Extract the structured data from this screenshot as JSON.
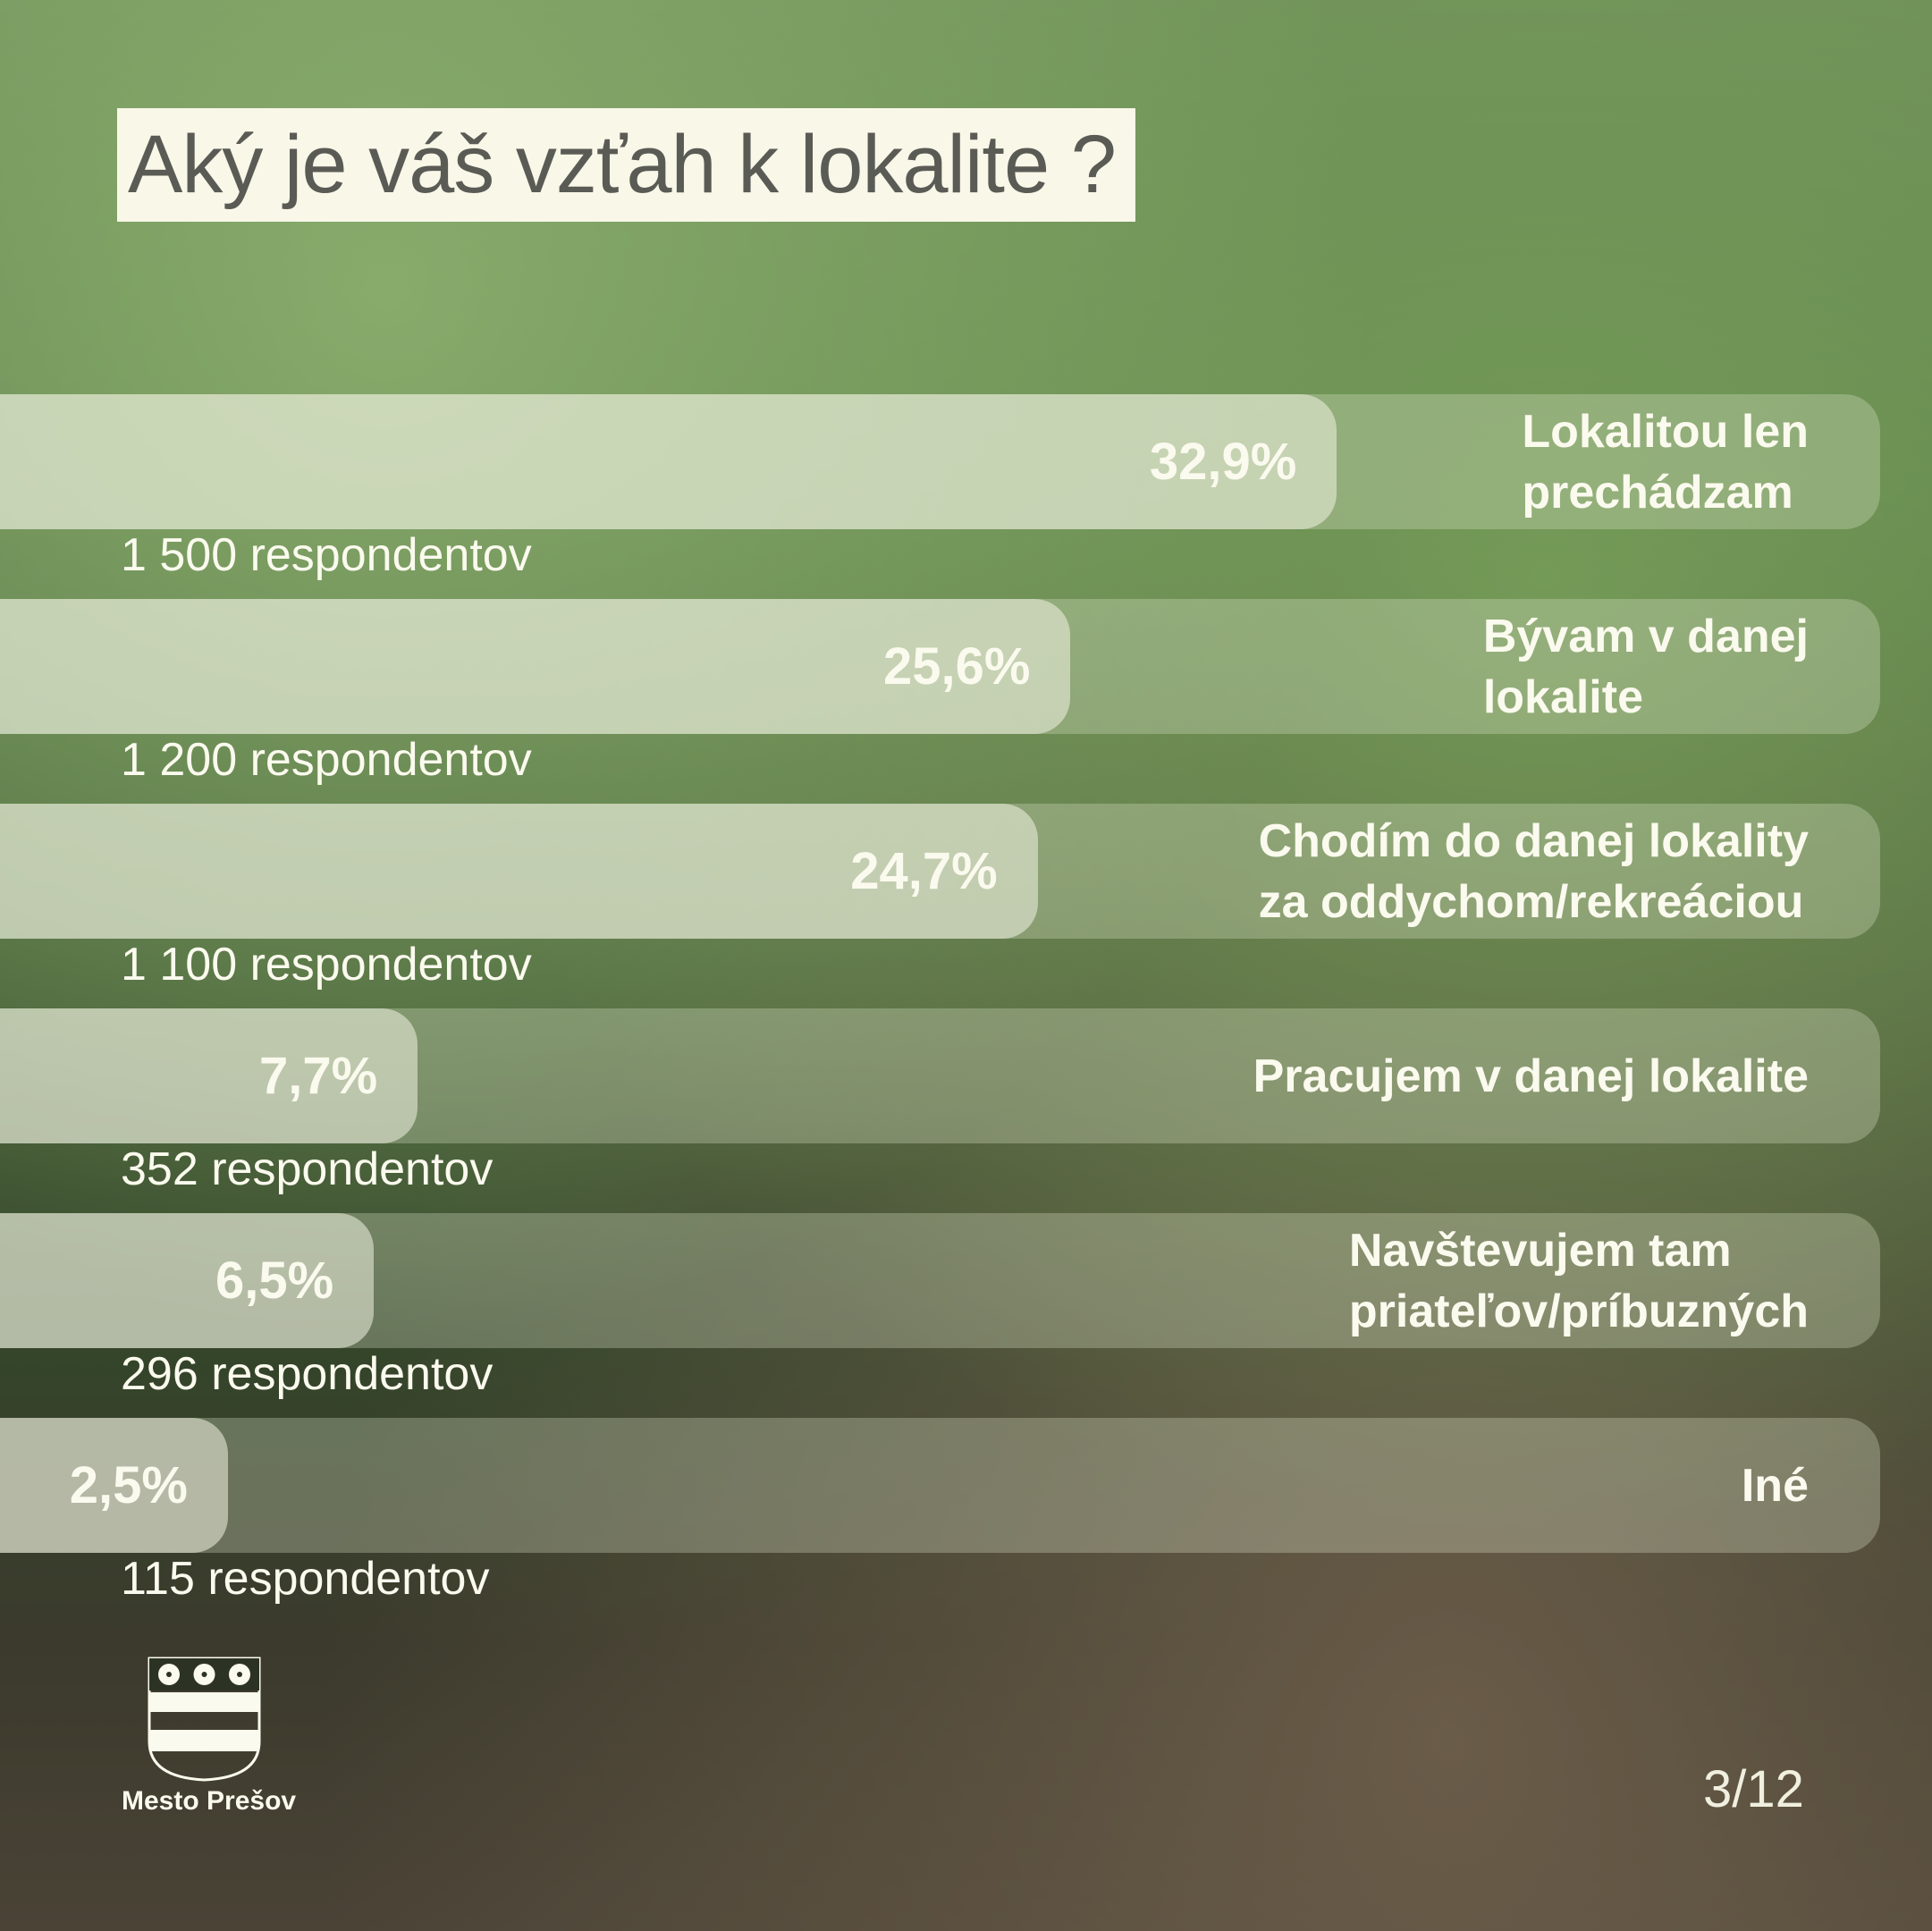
{
  "title": "Aký je váš vzťah k lokalite ?",
  "chart_data": {
    "type": "bar",
    "orientation": "horizontal",
    "categories": [
      "Lokalitou len\nprechádzam",
      "Bývam v danej\nlokalite",
      "Chodím do danej lokality\nza oddychom/rekreáciou",
      "Pracujem v danej lokalite",
      "Navštevujem tam\npriateľov/príbuzných",
      "Iné"
    ],
    "values": [
      32.9,
      25.6,
      24.7,
      7.7,
      6.5,
      2.5
    ],
    "value_labels": [
      "32,9%",
      "25,6%",
      "24,7%",
      "7,7%",
      "6,5%",
      "2,5%"
    ],
    "counts": [
      "1 500 respondentov",
      "1 200 respondentov",
      "1 100 respondentov",
      "352 respondentov",
      "296 respondentov",
      "115 respondentov"
    ],
    "unit": "%",
    "grid": false
  },
  "footer": {
    "logo_text": "Mesto Prešov",
    "page": "3/12"
  },
  "colors": {
    "text": "#fbfaee",
    "title_bg": "#f8f7e8",
    "title_text": "#5b5b55"
  }
}
